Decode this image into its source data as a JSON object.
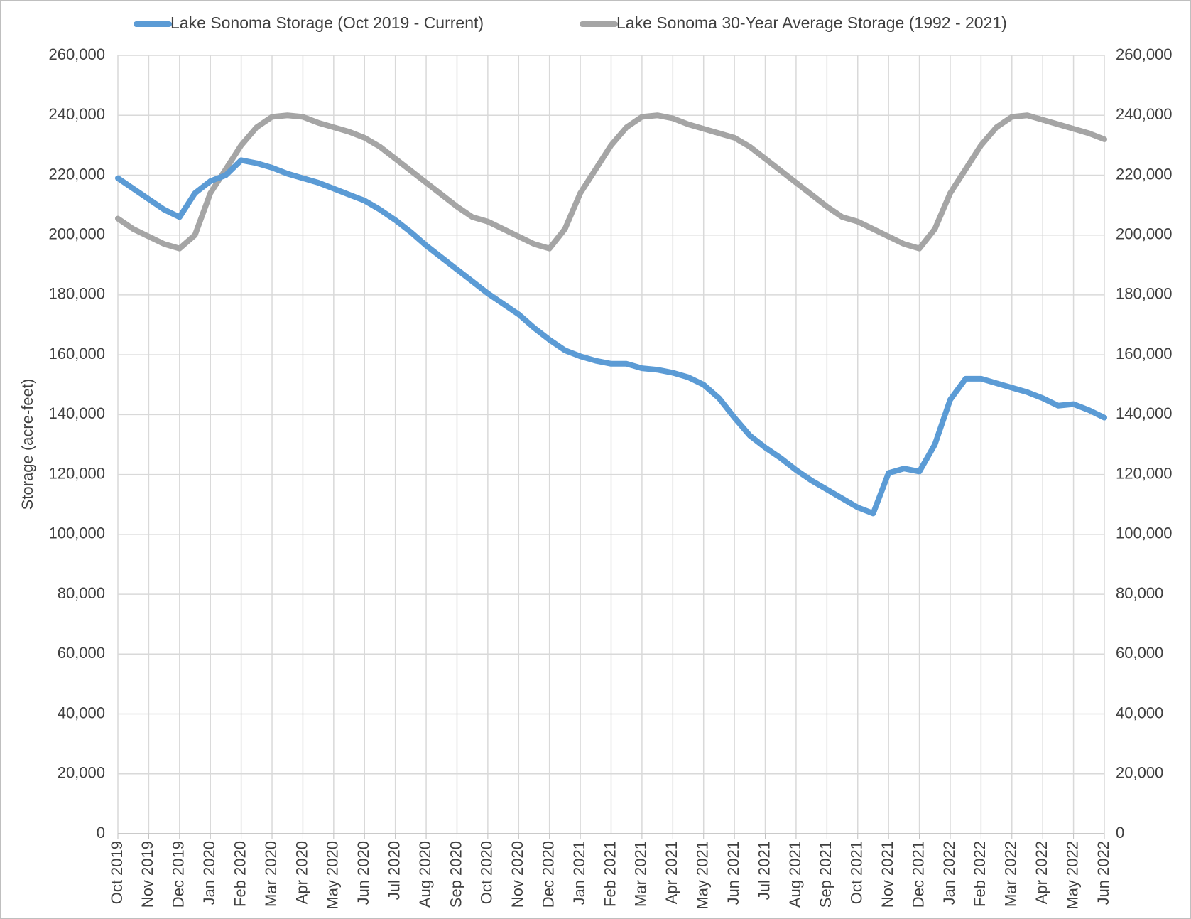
{
  "chart_data": {
    "type": "line",
    "y_label": "Storage (acre-feet)",
    "categories": [
      "Oct 2019",
      null,
      "Nov 2019",
      null,
      "Dec 2019",
      null,
      "Jan 2020",
      null,
      "Feb 2020",
      null,
      "Mar 2020",
      null,
      "Apr 2020",
      null,
      "May 2020",
      null,
      "Jun 2020",
      null,
      "Jul 2020",
      null,
      "Aug 2020",
      null,
      "Sep 2020",
      null,
      "Oct 2020",
      null,
      "Nov 2020",
      null,
      "Dec 2020",
      null,
      "Jan 2021",
      null,
      "Feb 2021",
      null,
      "Mar 2021",
      null,
      "Apr 2021",
      null,
      "May 2021",
      null,
      "Jun 2021",
      null,
      "Jul 2021",
      null,
      "Aug 2021",
      null,
      "Sep 2021",
      null,
      "Oct 2021",
      null,
      "Nov 2021",
      null,
      "Dec 2021",
      null,
      "Jan 2022",
      null,
      "Feb 2022",
      null,
      "Mar 2022",
      null,
      "Apr 2022",
      null,
      "May 2022",
      null,
      "Jun 2022"
    ],
    "series": [
      {
        "name": "Lake Sonoma Storage (Oct 2019 - Current)",
        "color": "#5b9bd5",
        "values": [
          219000,
          215500,
          212000,
          208500,
          206000,
          214000,
          218000,
          220000,
          225000,
          224000,
          222500,
          220500,
          219000,
          217500,
          215500,
          213500,
          211500,
          208500,
          205000,
          201000,
          196500,
          192500,
          188500,
          184500,
          180500,
          177000,
          173500,
          169000,
          165000,
          161500,
          159500,
          158000,
          157000,
          157000,
          155500,
          155000,
          154000,
          152500,
          150000,
          145500,
          139000,
          133000,
          129000,
          125500,
          121500,
          118000,
          115000,
          112000,
          109000,
          107000,
          120500,
          122000,
          121000,
          130000,
          145000,
          152000,
          152000,
          150500,
          149000,
          147500,
          145500,
          143000,
          143500,
          141500,
          139000
        ]
      },
      {
        "name": "Lake Sonoma 30-Year Average Storage (1992 - 2021)",
        "color": "#a5a5a5",
        "values": [
          205500,
          202000,
          199500,
          197000,
          195500,
          200000,
          214000,
          222000,
          230000,
          236000,
          239500,
          240000,
          239500,
          237500,
          236000,
          234500,
          232500,
          229500,
          225500,
          221500,
          217500,
          213500,
          209500,
          206000,
          204500,
          202000,
          199500,
          197000,
          195500,
          202000,
          214000,
          222000,
          230000,
          236000,
          239500,
          240000,
          239000,
          237000,
          235500,
          234000,
          232500,
          229500,
          225500,
          221500,
          217500,
          213500,
          209500,
          206000,
          204500,
          202000,
          199500,
          197000,
          195500,
          202000,
          214000,
          222000,
          230000,
          236000,
          239500,
          240000,
          238500,
          237000,
          235500,
          234000,
          232000
        ]
      }
    ],
    "ylim": [
      0,
      260000
    ],
    "yticks": [
      0,
      {
        "value": 20000,
        "label": "20,000"
      },
      {
        "value": 40000,
        "label": "40,000"
      },
      {
        "value": 60000,
        "label": "60,000"
      },
      {
        "value": 80000,
        "label": "80,000"
      },
      {
        "value": 100000,
        "label": "100,000"
      },
      {
        "value": 120000,
        "label": "120,000"
      },
      {
        "value": 140000,
        "label": "140,000"
      },
      {
        "value": 160000,
        "label": "160,000"
      },
      {
        "value": 180000,
        "label": "180,000"
      },
      {
        "value": 200000,
        "label": "200,000"
      },
      {
        "value": 220000,
        "label": "220,000"
      },
      {
        "value": 240000,
        "label": "240,000"
      },
      {
        "value": 260000,
        "label": "260,000"
      }
    ],
    "y2lim": [
      0,
      260000
    ],
    "y2ticks": [
      0,
      {
        "value": 20000,
        "label": "20,000"
      },
      {
        "value": 40000,
        "label": "40,000"
      },
      {
        "value": 60000,
        "label": "60,000"
      },
      {
        "value": 80000,
        "label": "80,000"
      },
      {
        "value": 100000,
        "label": "100,000"
      },
      {
        "value": 120000,
        "label": "120,000"
      },
      {
        "value": 140000,
        "label": "140,000"
      },
      {
        "value": 160000,
        "label": "160,000"
      },
      {
        "value": 180000,
        "label": "180,000"
      },
      {
        "value": 200000,
        "label": "200,000"
      },
      {
        "value": 220000,
        "label": "220,000"
      },
      {
        "value": 240000,
        "label": "240,000"
      },
      {
        "value": 260000,
        "label": "260,000"
      }
    ],
    "grid": true,
    "legend": "top"
  }
}
